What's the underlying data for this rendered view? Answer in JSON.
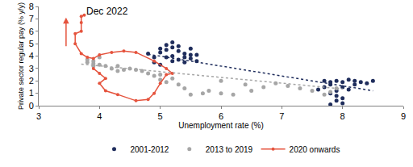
{
  "chart_data": {
    "type": "scatter",
    "x_label": "Unemployment rate (%)",
    "y_label": "Private sector regular pay (% y/y)",
    "xlim": [
      3,
      9
    ],
    "xticks": [
      3,
      4,
      5,
      6,
      7,
      8,
      9
    ],
    "ylim": [
      0,
      8
    ],
    "yticks": [
      0,
      1,
      2,
      3,
      4,
      5,
      6,
      7,
      8
    ],
    "grid": false,
    "legend": "bottom",
    "annotations": [
      {
        "text": "Dec 2022",
        "x": 3.75,
        "y": 7.6,
        "arrow": {
          "x": 3.45,
          "from": 4.7,
          "to": 7.1
        }
      }
    ],
    "series": [
      {
        "name": "2001-2012",
        "type": "scatter",
        "marker": "circle",
        "color": "#1f2d5c",
        "x": [
          4.8,
          4.9,
          5.0,
          5.0,
          5.1,
          5.2,
          5.1,
          5.2,
          5.3,
          5.3,
          5.4,
          5.4,
          5.5,
          5.5,
          5.2,
          5.0,
          4.9,
          5.1,
          5.3,
          5.4,
          5.6,
          5.5,
          5.6,
          5.2,
          7.7,
          7.8,
          7.9,
          8.0,
          8.1,
          8.2,
          8.3,
          8.4,
          8.5,
          8.0,
          7.9,
          7.8,
          7.9,
          8.0,
          7.9,
          8.0,
          7.8,
          8.1,
          7.7,
          8.2,
          7.6,
          7.8
        ],
        "y": [
          4.2,
          3.9,
          4.3,
          4.6,
          4.9,
          5.1,
          4.5,
          4.7,
          4.4,
          4.8,
          4.2,
          3.9,
          4.1,
          3.8,
          3.6,
          3.3,
          3.5,
          3.9,
          3.7,
          3.5,
          3.6,
          4.6,
          4.1,
          4.0,
          2.0,
          1.7,
          2.0,
          1.9,
          2.1,
          2.0,
          1.9,
          1.8,
          2.0,
          1.5,
          1.2,
          1.0,
          0.8,
          0.6,
          0.4,
          0.2,
          0.1,
          1.3,
          1.5,
          1.7,
          1.3,
          1.9
        ]
      },
      {
        "name": "2013 to 2019",
        "type": "scatter",
        "marker": "circle",
        "color": "#a6a6a6",
        "x": [
          7.9,
          7.8,
          7.7,
          7.5,
          7.3,
          7.1,
          6.9,
          6.7,
          6.5,
          6.2,
          6.0,
          5.8,
          5.7,
          5.5,
          5.4,
          5.3,
          5.1,
          5.0,
          4.9,
          4.8,
          4.7,
          4.6,
          4.5,
          4.4,
          4.3,
          4.2,
          4.1,
          4.0,
          3.9,
          3.8,
          3.8,
          3.9,
          4.0,
          3.9,
          4.3,
          5.0,
          5.2,
          6.0,
          6.4
        ],
        "y": [
          1.4,
          1.1,
          0.9,
          1.2,
          1.4,
          1.6,
          1.8,
          1.5,
          1.2,
          0.9,
          1.0,
          1.2,
          1.0,
          0.9,
          1.4,
          1.7,
          1.9,
          2.1,
          2.4,
          2.6,
          2.8,
          2.9,
          3.0,
          2.9,
          2.8,
          3.0,
          3.2,
          3.3,
          3.4,
          3.5,
          3.7,
          3.6,
          3.9,
          3.2,
          3.2,
          2.5,
          2.2,
          2.0,
          1.7
        ]
      },
      {
        "name": "2020 onwards",
        "type": "line",
        "marker": "circle",
        "line_style": "solid",
        "color": "#e5533d",
        "x": [
          3.9,
          4.0,
          4.1,
          4.0,
          4.1,
          4.3,
          4.6,
          4.8,
          4.9,
          5.0,
          5.1,
          5.2,
          5.1,
          4.9,
          4.6,
          4.4,
          4.2,
          4.0,
          3.9,
          3.8,
          3.7,
          3.6,
          3.6,
          3.7,
          3.7,
          3.7,
          3.75
        ],
        "y": [
          3.0,
          2.6,
          2.2,
          1.8,
          1.2,
          0.9,
          0.4,
          0.5,
          1.0,
          1.8,
          2.5,
          2.6,
          3.0,
          3.6,
          4.3,
          4.4,
          4.3,
          4.1,
          3.8,
          3.9,
          4.2,
          5.0,
          5.8,
          6.0,
          6.7,
          7.2,
          7.3
        ]
      },
      {
        "type": "line",
        "line_style": "dotted",
        "color": "#1f2d5c",
        "x": [
          4.8,
          8.5
        ],
        "y": [
          4.15,
          1.2
        ]
      },
      {
        "type": "line",
        "line_style": "dotted",
        "color": "#a6a6a6",
        "x": [
          3.7,
          8.0
        ],
        "y": [
          3.35,
          1.35
        ]
      }
    ]
  }
}
